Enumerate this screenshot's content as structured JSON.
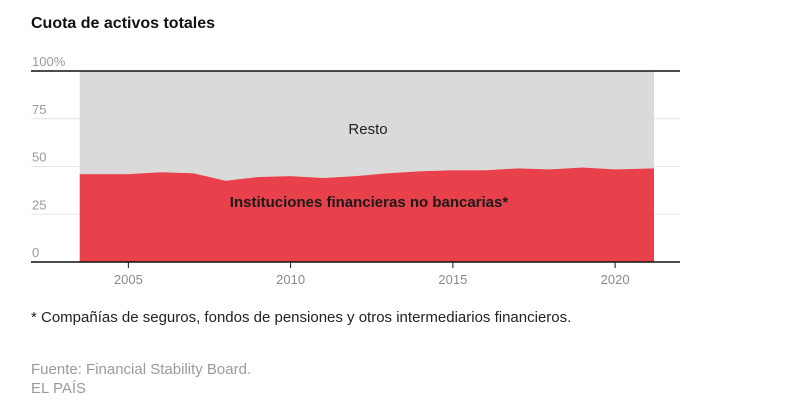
{
  "footnote": "* Compañías de seguros, fondos de pensiones y otros intermediarios financieros.",
  "source": "Fuente: Financial Stability Board.",
  "publisher": "EL PAÍS",
  "chart_data": {
    "type": "area",
    "stacked": true,
    "title": "Cuota de activos totales",
    "xlabel": "",
    "ylabel": "",
    "xlim": [
      2002,
      2022
    ],
    "ylim": [
      0,
      100
    ],
    "x": [
      2003.5,
      2005,
      2006,
      2007,
      2008,
      2009,
      2010,
      2011,
      2012,
      2013,
      2014,
      2015,
      2016,
      2017,
      2018,
      2019,
      2020,
      2021.2
    ],
    "series": [
      {
        "name": "Instituciones financieras no bancarias*",
        "color": "#e8414c",
        "values": [
          46,
          46,
          47,
          46.5,
          42.5,
          44.5,
          45,
          44,
          45,
          46.5,
          47.5,
          48,
          48,
          49,
          48.5,
          49.5,
          48.5,
          49
        ]
      },
      {
        "name": "Resto",
        "color": "#dadada",
        "values": [
          54,
          54,
          53,
          53.5,
          57.5,
          55.5,
          55,
          56,
          55,
          53.5,
          52.5,
          52,
          52,
          51,
          51.5,
          50.5,
          51.5,
          51
        ]
      }
    ],
    "yticks": [
      {
        "value": 0,
        "label": "0"
      },
      {
        "value": 25,
        "label": "25"
      },
      {
        "value": 50,
        "label": "50"
      },
      {
        "value": 75,
        "label": "75"
      },
      {
        "value": 100,
        "label": "100%"
      }
    ],
    "xticks": [
      {
        "value": 2005,
        "label": "2005"
      },
      {
        "value": 2010,
        "label": "2010"
      },
      {
        "value": 2015,
        "label": "2015"
      },
      {
        "value": 2020,
        "label": "2020"
      }
    ],
    "grid": true,
    "legend": "inline"
  }
}
